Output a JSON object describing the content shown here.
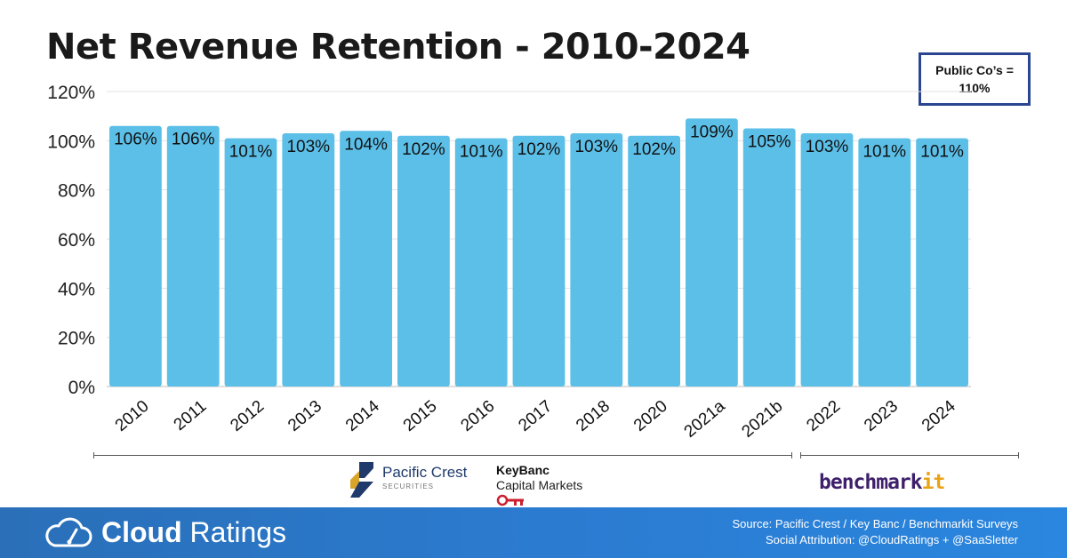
{
  "title": "Net Revenue Retention - 2010-2024",
  "callout": {
    "line1": "Public Co’s =",
    "line2": "110%"
  },
  "chart_data": {
    "type": "bar",
    "title": "Net Revenue Retention - 2010-2024",
    "categories": [
      "2010",
      "2011",
      "2012",
      "2013",
      "2014",
      "2015",
      "2016",
      "2017",
      "2018",
      "2020",
      "2021a",
      "2021b",
      "2022",
      "2023",
      "2024"
    ],
    "values": [
      106,
      106,
      101,
      103,
      104,
      102,
      101,
      102,
      103,
      102,
      109,
      105,
      103,
      101,
      101
    ],
    "data_labels": [
      "106%",
      "106%",
      "101%",
      "103%",
      "104%",
      "102%",
      "101%",
      "102%",
      "103%",
      "102%",
      "109%",
      "105%",
      "103%",
      "101%",
      "101%"
    ],
    "ylim": [
      0,
      120
    ],
    "yticks": [
      0,
      20,
      40,
      60,
      80,
      100,
      120
    ],
    "ytick_labels": [
      "0%",
      "20%",
      "40%",
      "60%",
      "80%",
      "100%",
      "120%"
    ],
    "xlabel": "",
    "ylabel": "",
    "grid": true,
    "bar_color": "#5bbfe8"
  },
  "sources": {
    "pacific_crest": {
      "name": "Pacific Crest",
      "sub": "SECURITIES"
    },
    "keybanc": {
      "name": "KeyBanc",
      "sub": "Capital Markets"
    },
    "benchmarkit": {
      "prefix": "benchmark",
      "suffix": "it"
    }
  },
  "footer": {
    "brand_bold": "Cloud",
    "brand_light": " Ratings",
    "source_line": "Source: Pacific Crest / Key Banc / Benchmarkit Surveys",
    "attribution_line": "Social Attribution: @CloudRatings + @SaaSletter"
  },
  "colors": {
    "accent": "#2b4591",
    "footer": "#2b7bd0",
    "bars": "#5bbfe8"
  }
}
